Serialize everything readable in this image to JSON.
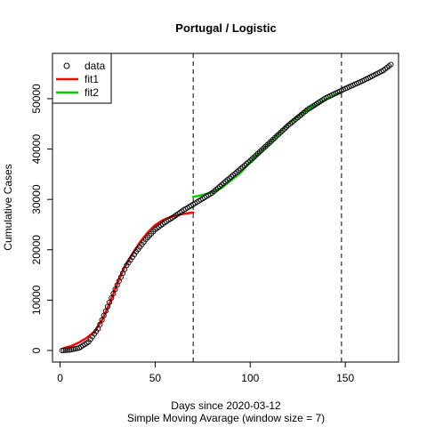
{
  "chart_data": {
    "type": "scatter",
    "title": "Portugal / Logistic",
    "xlabel": "Days since 2020-03-12",
    "subtitle": "Simple Moving Avarage (window size = 7)",
    "ylabel": "Cumulative Cases",
    "xlim": [
      -4,
      178
    ],
    "ylim": [
      -2300,
      59000
    ],
    "xticks": [
      0,
      50,
      100,
      150
    ],
    "yticks": [
      0,
      10000,
      20000,
      30000,
      40000,
      50000
    ],
    "vlines": [
      70,
      148
    ],
    "legend": {
      "position": "top-left",
      "entries": [
        {
          "label": "data",
          "kind": "circle",
          "color": "#000000"
        },
        {
          "label": "fit1",
          "kind": "line",
          "color": "#ff0000"
        },
        {
          "label": "fit2",
          "kind": "line",
          "color": "#00cd00"
        }
      ]
    },
    "series": [
      {
        "name": "data",
        "color": "#000000",
        "anchors_x": [
          1,
          5,
          10,
          15,
          20,
          25,
          30,
          35,
          40,
          45,
          50,
          55,
          60,
          65,
          70,
          80,
          90,
          100,
          110,
          120,
          130,
          140,
          150,
          160,
          170,
          174
        ],
        "anchors_y": [
          0,
          100,
          500,
          1700,
          4300,
          8700,
          13000,
          16900,
          19600,
          22000,
          24000,
          25400,
          26600,
          27900,
          29000,
          31300,
          34500,
          37700,
          41200,
          44700,
          47800,
          50200,
          52000,
          53700,
          55600,
          56800
        ]
      },
      {
        "name": "fit1",
        "color": "#ff0000",
        "x": [
          2,
          6,
          10,
          14,
          18,
          22,
          26,
          30,
          34,
          38,
          42,
          46,
          50,
          54,
          58,
          62,
          66,
          70
        ],
        "y": [
          500,
          900,
          1600,
          2500,
          3700,
          6000,
          9300,
          13200,
          16600,
          19200,
          21500,
          23400,
          24900,
          25900,
          26500,
          26900,
          27200,
          27400
        ]
      },
      {
        "name": "fit2",
        "color": "#00cd00",
        "x": [
          70,
          75,
          80,
          85,
          90,
          95,
          100,
          105,
          110,
          115,
          120,
          125,
          130,
          135,
          140,
          145,
          148
        ],
        "y": [
          30500,
          30900,
          31400,
          32300,
          33800,
          35300,
          37400,
          39300,
          41200,
          43100,
          45000,
          46500,
          47800,
          48900,
          49900,
          50800,
          51300
        ]
      }
    ]
  }
}
